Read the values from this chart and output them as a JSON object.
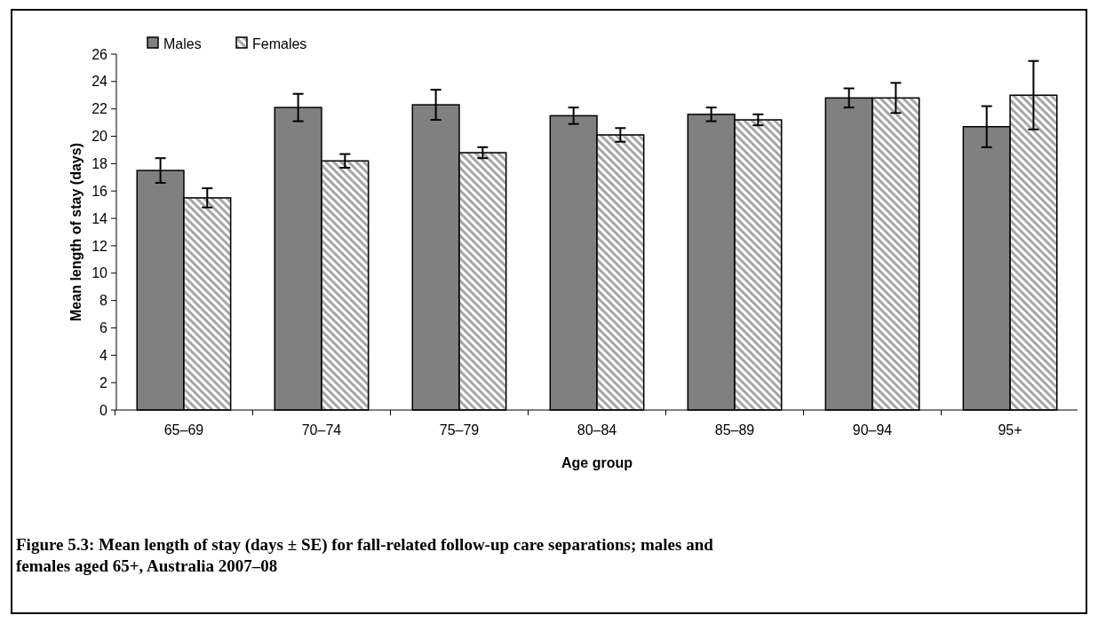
{
  "chart_data": {
    "type": "bar",
    "title": "Figure 5.3: Mean length of stay (days ± SE) for fall-related follow-up care separations; males and females aged 65+, Australia 2007–08",
    "xlabel": "Age group",
    "ylabel": "Mean length of stay (days)",
    "categories": [
      "65–69",
      "70–74",
      "75–79",
      "80–84",
      "85–89",
      "90–94",
      "95+"
    ],
    "series": [
      {
        "name": "Males",
        "color": "#808080",
        "values": [
          17.5,
          22.1,
          22.3,
          21.5,
          21.6,
          22.8,
          20.7
        ],
        "errors": [
          0.9,
          1.0,
          1.1,
          0.6,
          0.5,
          0.7,
          1.5
        ]
      },
      {
        "name": "Females",
        "color": "#a6a6a6",
        "values": [
          15.5,
          18.2,
          18.8,
          20.1,
          21.2,
          22.8,
          23.0
        ],
        "errors": [
          0.7,
          0.5,
          0.4,
          0.5,
          0.4,
          1.1,
          2.5
        ]
      }
    ],
    "ylim": [
      0,
      26
    ],
    "yticks": [
      0,
      2,
      4,
      6,
      8,
      10,
      12,
      14,
      16,
      18,
      20,
      22,
      24,
      26
    ],
    "legend": "top left",
    "grid": false
  }
}
